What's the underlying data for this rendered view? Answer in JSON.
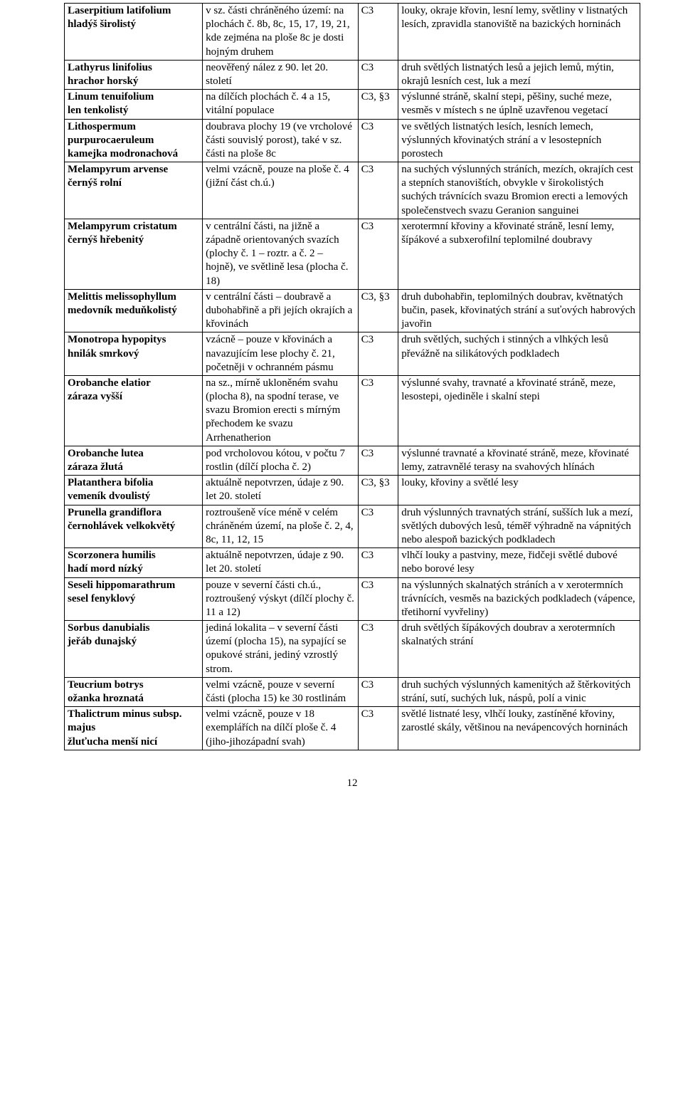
{
  "page_number": "12",
  "rows": [
    {
      "sci": "Laserpitium latifolium",
      "com": "hladýš širolistý",
      "loc": "v sz. části chráněného území: na plochách č. 8b, 8c, 15, 17, 19, 21, kde zejména na ploše 8c je dosti hojným druhem",
      "cat": "C3",
      "hab": "louky, okraje křovin, lesní lemy, světliny v listnatých lesích, zpravidla stanoviště na bazických horninách"
    },
    {
      "sci": "Lathyrus linifolius",
      "com": "hrachor horský",
      "loc": "neověřený nález z 90. let 20. století",
      "cat": "C3",
      "hab": "druh světlých listnatých lesů a jejich lemů, mýtin, okrajů lesních cest, luk a mezí"
    },
    {
      "sci": "Linum tenuifolium",
      "com": "len tenkolistý",
      "loc": "na dílčích plochách č. 4 a 15, vitální populace",
      "cat": "C3, §3",
      "hab": "výslunné stráně, skalní stepi, pěšiny, suché meze, vesměs v místech s ne úplně uzavřenou vegetací"
    },
    {
      "sci": "Lithospermum purpurocaeruleum",
      "com": "kamejka modronachová",
      "loc": "doubrava plochy 19 (ve vrcholové části souvislý porost), také v sz. části na ploše 8c",
      "cat": "C3",
      "hab": "ve světlých listnatých lesích, lesních lemech, výslunných křovinatých strání a v lesostepních porostech"
    },
    {
      "sci": "Melampyrum arvense",
      "com": "černýš rolní",
      "loc": "velmi vzácně, pouze na ploše č. 4 (jižní část ch.ú.)",
      "cat": "C3",
      "hab": "na suchých výslunných stráních, mezích, okrajích cest a stepních stanovištích, obvykle v širokolistých suchých trávnících svazu Bromion erecti a lemových společenstvech svazu Geranion sanguinei"
    },
    {
      "sci": "Melampyrum cristatum",
      "com": "černýš hřebenitý",
      "loc": "v centrální části, na jižně a západně orientovaných svazích (plochy č. 1 – roztr. a č. 2 – hojně), ve světlině lesa (plocha č. 18)",
      "cat": "C3",
      "hab": "xerotermní křoviny a křovinaté stráně, lesní lemy, šípákové a subxerofilní teplomilné doubravy"
    },
    {
      "sci": "Melittis melissophyllum",
      "com": "medovník meduňkolistý",
      "loc": "v centrální části – doubravě a dubohabřině a při jejích okrajích a křovinách",
      "cat": "C3, §3",
      "hab": "druh dubohabřin, teplomilných doubrav, květnatých bučin, pasek, křovinatých strání a suťových habrových javořin"
    },
    {
      "sci": "Monotropa hypopitys",
      "com": "hnilák smrkový",
      "loc": "vzácně – pouze v křovinách a navazujícím lese plochy č. 21, početněji v ochranném pásmu",
      "cat": "C3",
      "hab": "druh světlých, suchých i stinných a vlhkých lesů převážně na silikátových podkladech"
    },
    {
      "sci": "Orobanche elatior",
      "com": "záraza vyšší",
      "loc": "na sz., mírně ukloněném svahu (plocha 8), na spodní terase, ve svazu Bromion erecti s mírným přechodem ke svazu Arrhenatherion",
      "cat": "C3",
      "hab": "výslunné svahy, travnaté a křovinaté stráně, meze, lesostepi, ojediněle i skalní stepi"
    },
    {
      "sci": "Orobanche lutea",
      "com": "záraza žlutá",
      "loc": "pod vrcholovou kótou, v počtu 7 rostlin (dílčí plocha č. 2)",
      "cat": "C3",
      "hab": "výslunné travnaté a křovinaté stráně, meze, křovinaté lemy, zatravnělé terasy na svahových hlínách"
    },
    {
      "sci": "Platanthera bifolia",
      "com": "vemeník dvoulistý",
      "loc": "aktuálně nepotvrzen, údaje z 90. let 20. století",
      "cat": "C3, §3",
      "hab": "louky, křoviny a světlé lesy"
    },
    {
      "sci": "Prunella grandiflora",
      "com": "černohlávek velkokvětý",
      "loc": "roztroušeně více méně v celém chráněném území, na ploše č. 2, 4, 8c, 11, 12, 15",
      "cat": "C3",
      "hab": "druh výslunných travnatých strání, sušších luk a mezí, světlých dubových lesů, téměř výhradně na vápnitých nebo alespoň bazických podkladech"
    },
    {
      "sci": "Scorzonera humilis",
      "com": "hadí mord nízký",
      "loc": "aktuálně nepotvrzen, údaje z 90. let 20. století",
      "cat": "C3",
      "hab": "vlhčí louky a pastviny, meze, řidčeji světlé dubové nebo borové lesy"
    },
    {
      "sci": "Seseli hippomarathrum",
      "com": "sesel fenyklový",
      "loc": "pouze v severní části ch.ú., roztroušený výskyt (dílčí plochy č. 11 a 12)",
      "cat": "C3",
      "hab": "na výslunných skalnatých stráních a v xerotermních trávnících, vesměs na bazických podkladech (vápence, třetihorní vyvřeliny)"
    },
    {
      "sci": "Sorbus danubialis",
      "com": "jeřáb dunajský",
      "loc": "jediná lokalita – v severní části území (plocha 15), na sypající se opukové stráni, jediný vzrostlý strom.",
      "cat": "C3",
      "hab": "druh světlých šípákových doubrav a xerotermních skalnatých strání"
    },
    {
      "sci": "Teucrium botrys",
      "com": "ožanka hroznatá",
      "loc": "velmi vzácně, pouze v severní části (plocha 15) ke 30 rostlinám",
      "cat": "C3",
      "hab": "druh suchých výslunných kamenitých až štěrkovitých strání, sutí, suchých luk, náspů, polí a vinic"
    },
    {
      "sci": "Thalictrum minus subsp. majus",
      "com": "žluťucha menší nicí",
      "loc": "velmi vzácně, pouze v 18 exemplářích na dílčí ploše č. 4 (jiho-jihozápadní svah)",
      "cat": "C3",
      "hab": "světlé listnaté lesy, vlhčí louky, zastíněné křoviny, zarostlé skály, většinou na nevápencových horninách"
    }
  ]
}
